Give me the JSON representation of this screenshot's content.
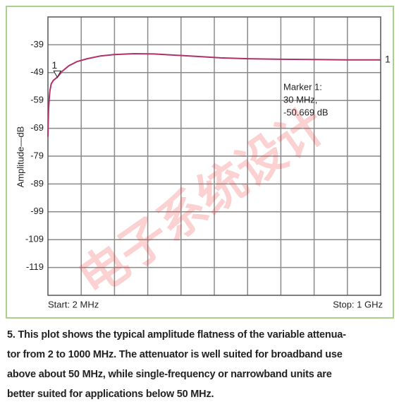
{
  "chart_data": {
    "type": "line",
    "y_label": "Amplitude—dB",
    "x": [
      2,
      3,
      4,
      6,
      8,
      12,
      18,
      30,
      45,
      65,
      90,
      120,
      160,
      200,
      260,
      320,
      380,
      450,
      520,
      600,
      700,
      800,
      900,
      1000
    ],
    "values": [
      -72,
      -66,
      -62,
      -58,
      -55.5,
      -53,
      -51.8,
      -50.669,
      -48.5,
      -46.5,
      -45,
      -44,
      -43,
      -42.5,
      -42.2,
      -42.3,
      -42.7,
      -43.2,
      -43.7,
      -44,
      -44.2,
      -44.3,
      -44.4,
      -44.4
    ],
    "color": "#b03068",
    "xlim": [
      2,
      1000
    ],
    "ylim": [
      -129,
      -29
    ],
    "yticks": [
      -39,
      -49,
      -59,
      -69,
      -79,
      -89,
      -99,
      -109,
      -119
    ],
    "grid": true,
    "marker": {
      "x": 30,
      "y": -50.669,
      "label": "1"
    },
    "end_label": "1",
    "annotation": [
      "Marker 1:",
      "30 MHz,",
      "-50.669 dB"
    ],
    "start_label": "Start: 2 MHz",
    "stop_label": "Stop: 1 GHz",
    "watermark": "电子系统设计"
  },
  "caption": [
    "5. This plot shows the typical amplitude flatness of the variable attenua-",
    "tor from 2 to 1000 MHz. The attenuator is well suited for broadband use",
    "above about 50 MHz, while single-frequency or narrowband units are",
    "better suited for applications below 50 MHz."
  ]
}
